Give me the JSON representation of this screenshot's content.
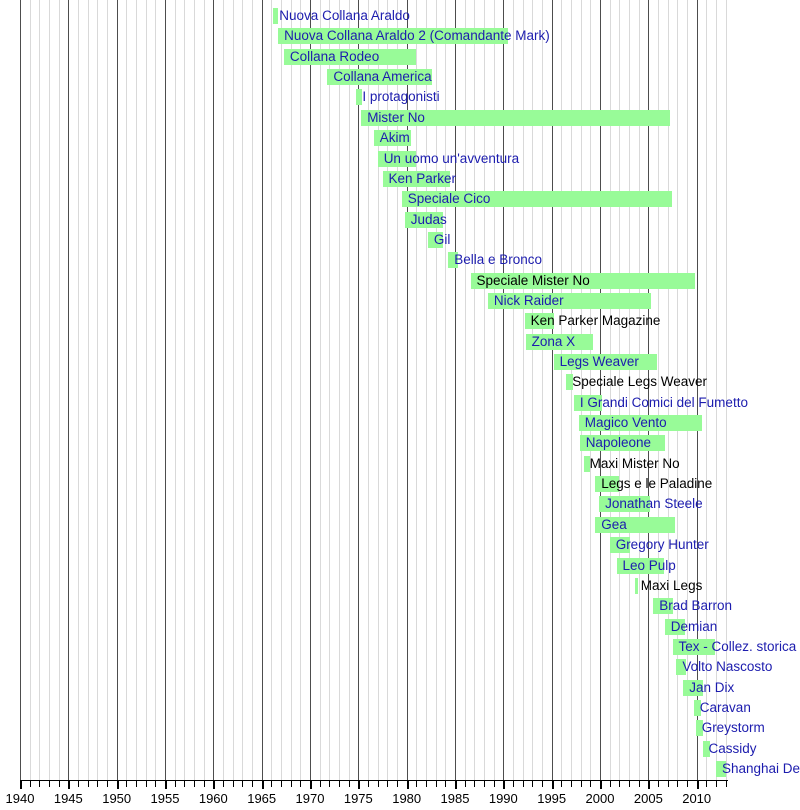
{
  "chart_data": {
    "type": "timeline",
    "description": "Gantt-style publication timeline of comic book series, green bars spanning publication years",
    "x_axis": {
      "min": 1940,
      "max": 2013.2,
      "minor_tick_interval": 1,
      "major_tick_interval": 5,
      "tick_labels": [
        "1940",
        "1945",
        "1950",
        "1955",
        "1960",
        "1965",
        "1970",
        "1975",
        "1980",
        "1985",
        "1990",
        "1995",
        "2000",
        "2005",
        "2010"
      ]
    },
    "grid": "on",
    "legend": "none",
    "colors": {
      "bar": "#98fb98",
      "link_text": "#1c1cae",
      "plain_text": "#000000",
      "minor_grid": "#d9d9d9",
      "major_grid": "#4d4d4d",
      "axis": "#000000"
    },
    "series": [
      {
        "label": "Nuova Collana Araldo",
        "start": 1966.2,
        "end": 1966.7,
        "link": true
      },
      {
        "label": "Nuova Collana Araldo 2 (Comandante Mark)",
        "start": 1966.7,
        "end": 1990.5,
        "link": true
      },
      {
        "label": "Collana Rodeo",
        "start": 1967.3,
        "end": 1981.0,
        "link": true
      },
      {
        "label": "Collana America",
        "start": 1971.8,
        "end": 1982.6,
        "link": true
      },
      {
        "label": "I protagonisti",
        "start": 1974.8,
        "end": 1975.4,
        "link": true
      },
      {
        "label": "Mister No",
        "start": 1975.3,
        "end": 2007.2,
        "link": true
      },
      {
        "label": "Akim",
        "start": 1976.6,
        "end": 1980.5,
        "link": true
      },
      {
        "label": "Un uomo un'avventura",
        "start": 1977.0,
        "end": 1981.0,
        "link": true
      },
      {
        "label": "Ken Parker",
        "start": 1977.5,
        "end": 1984.5,
        "link": true
      },
      {
        "label": "Speciale Cico",
        "start": 1979.5,
        "end": 2007.5,
        "link": true
      },
      {
        "label": "Judas",
        "start": 1979.8,
        "end": 1983.8,
        "link": true
      },
      {
        "label": "Gil",
        "start": 1982.2,
        "end": 1983.8,
        "link": true
      },
      {
        "label": "Bella e Bronco",
        "start": 1984.3,
        "end": 1985.3,
        "link": true
      },
      {
        "label": "Speciale Mister No",
        "start": 1986.6,
        "end": 2009.8,
        "link": false
      },
      {
        "label": "Nick Raider",
        "start": 1988.4,
        "end": 2005.3,
        "link": true
      },
      {
        "label": "Ken Parker Magazine",
        "start": 1992.2,
        "end": 1995.2,
        "link": false
      },
      {
        "label": "Zona X",
        "start": 1992.3,
        "end": 1999.3,
        "link": true
      },
      {
        "label": "Legs Weaver",
        "start": 1995.2,
        "end": 2005.9,
        "link": true
      },
      {
        "label": "Speciale Legs Weaver",
        "start": 1996.5,
        "end": 1997.2,
        "link": false
      },
      {
        "label": "I Grandi Comici del Fumetto",
        "start": 1997.3,
        "end": 2000.2,
        "link": true
      },
      {
        "label": "Magico Vento",
        "start": 1997.8,
        "end": 2010.6,
        "link": true
      },
      {
        "label": "Napoleone",
        "start": 1997.9,
        "end": 2006.7,
        "link": true
      },
      {
        "label": "Maxi Mister No",
        "start": 1998.3,
        "end": 1999.0,
        "link": false
      },
      {
        "label": "Legs e le Paladine",
        "start": 1999.5,
        "end": 2002.0,
        "link": false
      },
      {
        "label": "Jonathan Steele",
        "start": 1999.9,
        "end": 2005.2,
        "link": true
      },
      {
        "label": "Gea",
        "start": 1999.5,
        "end": 2007.8,
        "link": true
      },
      {
        "label": "Gregory Hunter",
        "start": 2001.0,
        "end": 2003.1,
        "link": true
      },
      {
        "label": "Leo Pulp",
        "start": 2001.7,
        "end": 2006.6,
        "link": true
      },
      {
        "label": "Maxi Legs",
        "start": 2003.6,
        "end": 2003.9,
        "link": false
      },
      {
        "label": "Brad Barron",
        "start": 2005.5,
        "end": 2007.6,
        "link": true
      },
      {
        "label": "Demian",
        "start": 2006.7,
        "end": 2008.8,
        "link": true
      },
      {
        "label": "Tex - Collez. storica",
        "start": 2007.5,
        "end": 2011.9,
        "link": true
      },
      {
        "label": "Volto Nascosto",
        "start": 2007.9,
        "end": 2008.9,
        "link": true
      },
      {
        "label": "Jan Dix",
        "start": 2008.6,
        "end": 2010.7,
        "link": true
      },
      {
        "label": "Caravan",
        "start": 2009.7,
        "end": 2010.5,
        "link": true
      },
      {
        "label": "Greystorm",
        "start": 2009.9,
        "end": 2010.7,
        "link": true
      },
      {
        "label": "Cassidy",
        "start": 2010.6,
        "end": 2011.4,
        "link": true
      },
      {
        "label": "Shanghai Devil",
        "start": 2012.0,
        "end": 2013.0,
        "link": true
      }
    ]
  }
}
